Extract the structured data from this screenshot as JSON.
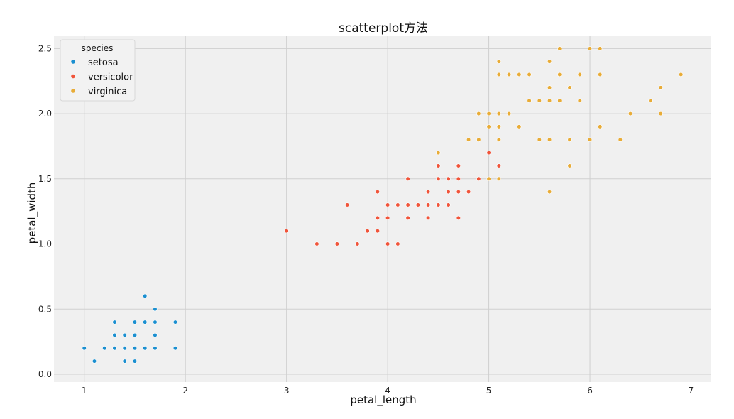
{
  "chart_data": {
    "type": "scatter",
    "title": "scatterplot方法",
    "xlabel": "petal_length",
    "ylabel": "petal_width",
    "xlim": [
      0.7,
      7.2
    ],
    "ylim": [
      -0.06,
      2.6
    ],
    "xticks": [
      1,
      2,
      3,
      4,
      5,
      6,
      7
    ],
    "yticks": [
      0.0,
      0.5,
      1.0,
      1.5,
      2.0,
      2.5
    ],
    "grid": true,
    "background_color": "#f0f0f0",
    "legend": {
      "title": "species",
      "placement": "top-left"
    },
    "series": [
      {
        "name": "setosa",
        "color": "#1a8fd0",
        "points": [
          [
            1.0,
            0.2
          ],
          [
            1.1,
            0.1
          ],
          [
            1.2,
            0.2
          ],
          [
            1.3,
            0.2
          ],
          [
            1.3,
            0.3
          ],
          [
            1.3,
            0.4
          ],
          [
            1.4,
            0.1
          ],
          [
            1.4,
            0.2
          ],
          [
            1.4,
            0.3
          ],
          [
            1.5,
            0.1
          ],
          [
            1.5,
            0.2
          ],
          [
            1.5,
            0.3
          ],
          [
            1.5,
            0.4
          ],
          [
            1.6,
            0.2
          ],
          [
            1.6,
            0.4
          ],
          [
            1.6,
            0.6
          ],
          [
            1.7,
            0.2
          ],
          [
            1.7,
            0.3
          ],
          [
            1.7,
            0.4
          ],
          [
            1.7,
            0.5
          ],
          [
            1.9,
            0.2
          ],
          [
            1.9,
            0.4
          ]
        ]
      },
      {
        "name": "versicolor",
        "color": "#f0543a",
        "points": [
          [
            3.0,
            1.1
          ],
          [
            3.3,
            1.0
          ],
          [
            3.5,
            1.0
          ],
          [
            3.6,
            1.3
          ],
          [
            3.7,
            1.0
          ],
          [
            3.8,
            1.1
          ],
          [
            3.9,
            1.1
          ],
          [
            3.9,
            1.2
          ],
          [
            3.9,
            1.4
          ],
          [
            4.0,
            1.0
          ],
          [
            4.0,
            1.2
          ],
          [
            4.0,
            1.3
          ],
          [
            4.1,
            1.0
          ],
          [
            4.1,
            1.3
          ],
          [
            4.2,
            1.2
          ],
          [
            4.2,
            1.3
          ],
          [
            4.2,
            1.5
          ],
          [
            4.3,
            1.3
          ],
          [
            4.4,
            1.2
          ],
          [
            4.4,
            1.3
          ],
          [
            4.4,
            1.4
          ],
          [
            4.5,
            1.3
          ],
          [
            4.5,
            1.5
          ],
          [
            4.5,
            1.6
          ],
          [
            4.6,
            1.3
          ],
          [
            4.6,
            1.4
          ],
          [
            4.6,
            1.5
          ],
          [
            4.7,
            1.2
          ],
          [
            4.7,
            1.4
          ],
          [
            4.7,
            1.5
          ],
          [
            4.7,
            1.6
          ],
          [
            4.8,
            1.4
          ],
          [
            4.9,
            1.5
          ],
          [
            5.0,
            1.7
          ],
          [
            5.1,
            1.6
          ]
        ]
      },
      {
        "name": "virginica",
        "color": "#e8ac38",
        "points": [
          [
            4.5,
            1.7
          ],
          [
            4.8,
            1.8
          ],
          [
            4.9,
            1.8
          ],
          [
            4.9,
            2.0
          ],
          [
            5.0,
            1.5
          ],
          [
            5.0,
            1.9
          ],
          [
            5.0,
            2.0
          ],
          [
            5.1,
            1.5
          ],
          [
            5.1,
            1.8
          ],
          [
            5.1,
            1.9
          ],
          [
            5.1,
            2.0
          ],
          [
            5.1,
            2.3
          ],
          [
            5.1,
            2.4
          ],
          [
            5.2,
            2.0
          ],
          [
            5.2,
            2.3
          ],
          [
            5.3,
            1.9
          ],
          [
            5.3,
            2.3
          ],
          [
            5.4,
            2.1
          ],
          [
            5.4,
            2.3
          ],
          [
            5.5,
            1.8
          ],
          [
            5.5,
            2.1
          ],
          [
            5.6,
            1.4
          ],
          [
            5.6,
            1.8
          ],
          [
            5.6,
            2.1
          ],
          [
            5.6,
            2.2
          ],
          [
            5.6,
            2.4
          ],
          [
            5.7,
            2.1
          ],
          [
            5.7,
            2.3
          ],
          [
            5.7,
            2.5
          ],
          [
            5.8,
            1.6
          ],
          [
            5.8,
            1.8
          ],
          [
            5.8,
            2.2
          ],
          [
            5.9,
            2.1
          ],
          [
            5.9,
            2.3
          ],
          [
            6.0,
            1.8
          ],
          [
            6.0,
            2.5
          ],
          [
            6.1,
            1.9
          ],
          [
            6.1,
            2.3
          ],
          [
            6.1,
            2.5
          ],
          [
            6.3,
            1.8
          ],
          [
            6.4,
            2.0
          ],
          [
            6.6,
            2.1
          ],
          [
            6.7,
            2.0
          ],
          [
            6.7,
            2.2
          ],
          [
            6.9,
            2.3
          ]
        ]
      }
    ]
  }
}
